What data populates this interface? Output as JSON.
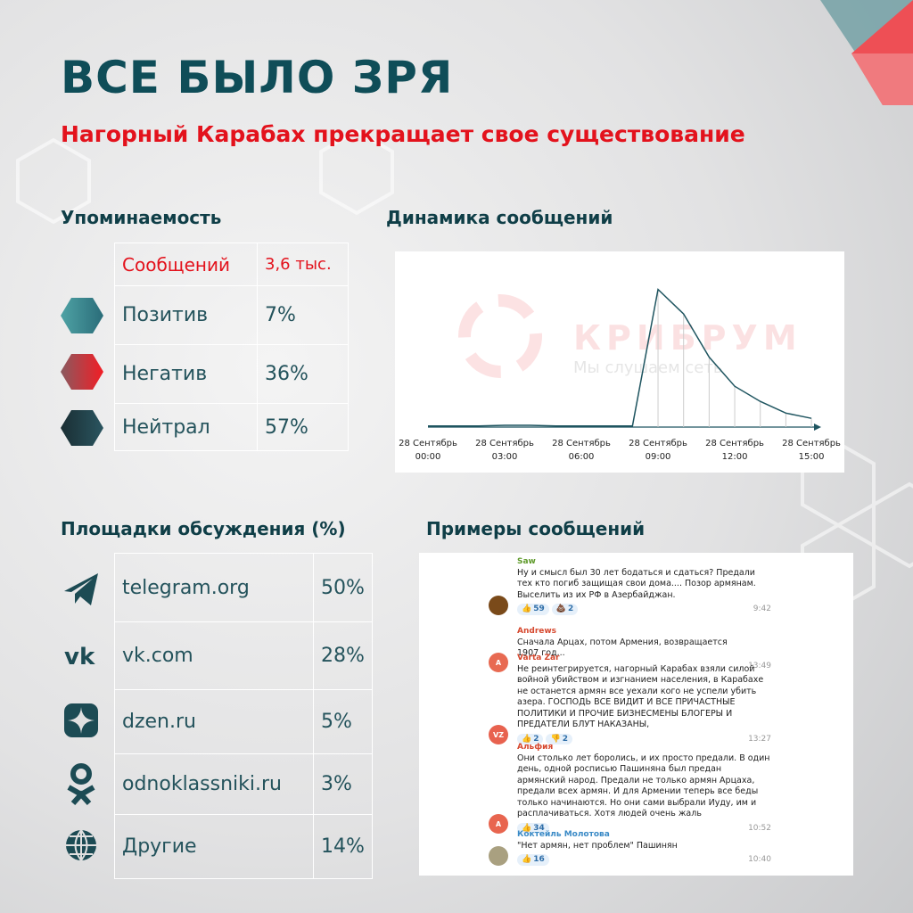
{
  "header": {
    "title": "ВСЕ БЫЛО ЗРЯ",
    "subtitle": "Нагорный Карабах прекращает свое существование"
  },
  "mentions": {
    "heading": "Упоминаемость",
    "rows": [
      [
        "Сообщений",
        "3,6 тыс."
      ],
      [
        "Позитив",
        "7%"
      ],
      [
        "Негатив",
        "36%"
      ],
      [
        "Нейтрал",
        "57%"
      ]
    ]
  },
  "chart_data": {
    "type": "line",
    "title": "Динамика сообщений",
    "watermark": [
      "КРИБРУМ",
      "Мы слушаем сеть"
    ],
    "categories": [
      "28 Сентябрь\n00:00",
      null,
      null,
      "28 Сентябрь\n03:00",
      null,
      null,
      "28 Сентябрь\n06:00",
      null,
      null,
      "28 Сентябрь\n09:00",
      null,
      null,
      "28 Сентябрь\n12:00",
      null,
      null,
      "28 Сентябрь\n15:00"
    ],
    "values": [
      10,
      10,
      10,
      15,
      15,
      10,
      10,
      10,
      10,
      1180,
      970,
      600,
      350,
      220,
      120,
      75
    ],
    "color": "#1f5560",
    "ylim": [
      0,
      1200
    ]
  },
  "platforms": {
    "heading": "Площадки обсуждения (%)",
    "rows": [
      [
        "telegram.org",
        "50%"
      ],
      [
        "vk.com",
        "28%"
      ],
      [
        "dzen.ru",
        "5%"
      ],
      [
        "odnoklassniki.ru",
        "3%"
      ],
      [
        "Другие",
        "14%"
      ]
    ]
  },
  "examples": {
    "heading": "Примеры сообщений",
    "messages": [
      {
        "author": "Saw",
        "text": "Ну и смысл был 30 лет бодаться и сдаться? Предали тех кто погиб защищая свои дома.... Позор армянам. Выселить из их РФ в Азербайджан.",
        "reactions": [
          {
            "icon": "👍",
            "count": "59"
          },
          {
            "icon": "💩",
            "count": "2"
          }
        ],
        "time": "9:42"
      },
      {
        "author": "Andrews",
        "avatar": "A",
        "text": "Сначала Арцах, потом Армения, возвращается 1907 год...",
        "time": "13:49"
      },
      {
        "author": "Varta Zar",
        "avatar": "VZ",
        "text": "Не реинтегрируется, нагорный Карабах взяли силой войной убийством и изгнанием населения, в Карабахе не останется армян все уехали кого не успели убить азера. ГОСПОДЬ ВСЕ ВИДИТ И ВСЕ ПРИЧАСТНЫЕ ПОЛИТИКИ И ПРОЧИЕ БИЗНЕСМЕНЫ БЛОГЕРЫ И ПРЕДАТЕЛИ БЛУТ НАКАЗАНЫ,",
        "reactions": [
          {
            "icon": "👍",
            "count": "2"
          },
          {
            "icon": "👎",
            "count": "2"
          }
        ],
        "time": "13:27"
      },
      {
        "author": "Альфия",
        "avatar": "A",
        "text": "Они столько лет боролись, и их просто предали. В один день, одной росписью Пашиняна был предан армянский народ. Предали не только армян Арцаха, предали всех армян. И для Армении теперь все беды только начинаются. Но они сами выбрали Иуду, им и расплачиваться. Хотя людей очень жаль",
        "reactions": [
          {
            "icon": "👍",
            "count": "34"
          }
        ],
        "time": "10:52"
      },
      {
        "author": "Коктейль Молотова",
        "text": "\"Нет армян, нет проблем\" Пашинян",
        "reactions": [
          {
            "icon": "👍",
            "count": "16"
          }
        ],
        "time": "10:40"
      }
    ]
  }
}
